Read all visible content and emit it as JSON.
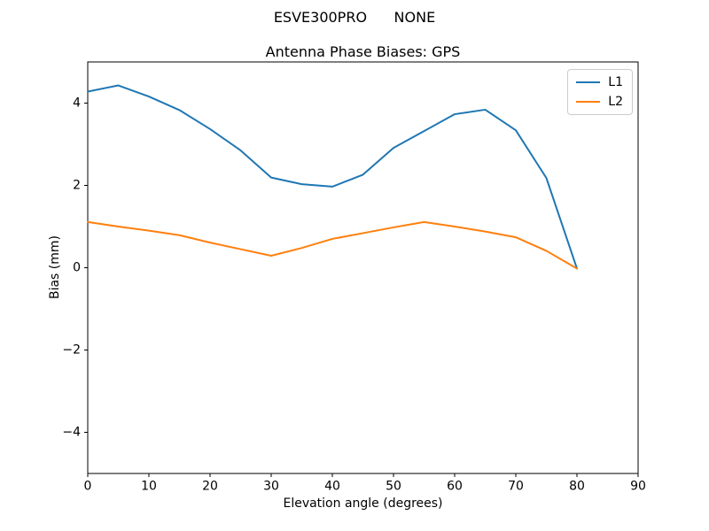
{
  "suptitle": "ESVE300PRO      NONE",
  "chart_data": {
    "type": "line",
    "title": "Antenna Phase Biases: GPS",
    "xlabel": "Elevation angle (degrees)",
    "ylabel": "Bias (mm)",
    "xlim": [
      0,
      90
    ],
    "ylim": [
      -5,
      5
    ],
    "xticks": [
      0,
      10,
      20,
      30,
      40,
      50,
      60,
      70,
      80,
      90
    ],
    "yticks": [
      -4,
      -2,
      0,
      2,
      4
    ],
    "grid": false,
    "legend_position": "upper right",
    "x": [
      0,
      5,
      10,
      15,
      20,
      25,
      30,
      35,
      40,
      45,
      50,
      55,
      60,
      65,
      70,
      75,
      80
    ],
    "series": [
      {
        "name": "L1",
        "color": "#1f77b4",
        "values": [
          4.28,
          4.43,
          4.16,
          3.83,
          3.37,
          2.85,
          2.19,
          2.03,
          1.97,
          2.26,
          2.91,
          3.32,
          3.73,
          3.84,
          3.34,
          2.18,
          -0.02
        ]
      },
      {
        "name": "L2",
        "color": "#ff7f0e",
        "values": [
          1.11,
          1.0,
          0.9,
          0.79,
          0.61,
          0.45,
          0.29,
          0.48,
          0.7,
          0.84,
          0.98,
          1.11,
          1.0,
          0.88,
          0.74,
          0.41,
          -0.02
        ]
      }
    ]
  }
}
